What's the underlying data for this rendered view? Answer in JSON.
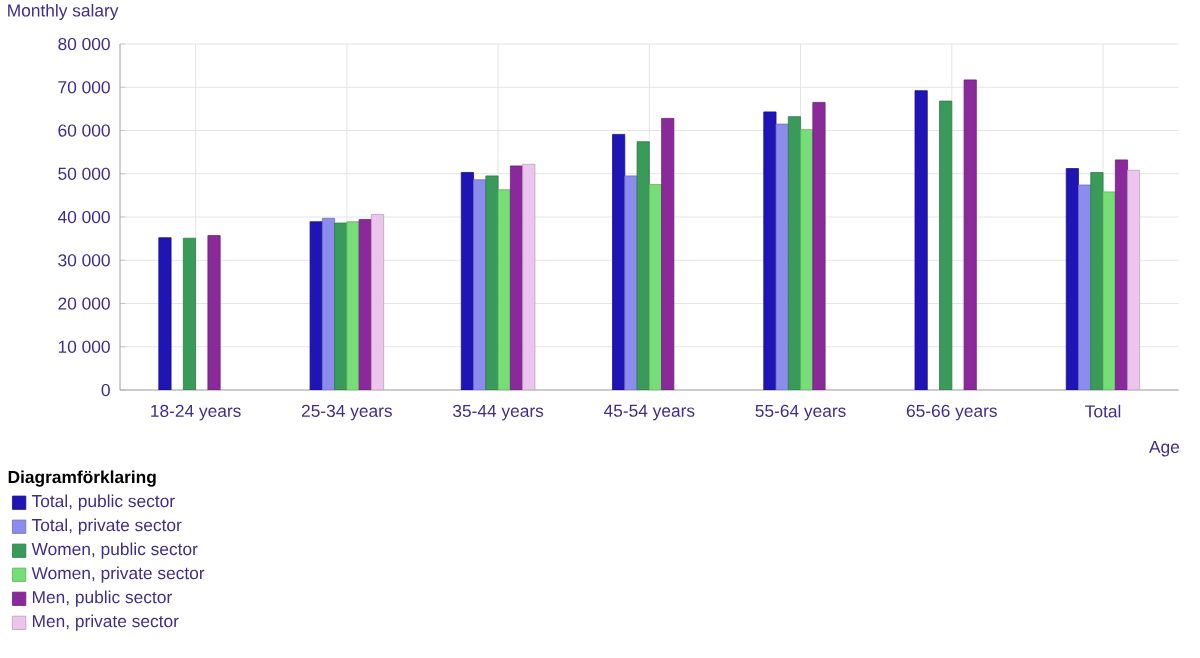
{
  "chart_data": {
    "type": "bar",
    "ylabel": "Monthly salary",
    "xlabel": "Age",
    "legend_title": "Diagramförklaring",
    "categories": [
      "18-24 years",
      "25-34 years",
      "35-44 years",
      "45-54 years",
      "55-64 years",
      "65-66 years",
      "Total"
    ],
    "series": [
      {
        "name": "Total, public sector",
        "color": "#1f14b4",
        "values": [
          35200,
          38900,
          50300,
          59100,
          64300,
          69200,
          51200
        ]
      },
      {
        "name": "Total, private sector",
        "color": "#8c8ced",
        "values": [
          null,
          39700,
          48600,
          49500,
          61500,
          null,
          47400
        ]
      },
      {
        "name": "Women, public sector",
        "color": "#3a9a5a",
        "values": [
          35100,
          38600,
          49500,
          57400,
          63200,
          66800,
          50300
        ]
      },
      {
        "name": "Women, private sector",
        "color": "#77dd77",
        "values": [
          null,
          38900,
          46300,
          47500,
          60200,
          null,
          45800
        ]
      },
      {
        "name": "Men, public sector",
        "color": "#8a2a9a",
        "values": [
          35700,
          39400,
          51800,
          62800,
          66500,
          71700,
          53200
        ]
      },
      {
        "name": "Men, private sector",
        "color": "#ecc5ec",
        "values": [
          null,
          40600,
          52200,
          null,
          null,
          null,
          50800
        ]
      }
    ],
    "ylim": [
      0,
      80000
    ],
    "yticks": [
      0,
      {
        "value": 10000,
        "label": "10 000"
      },
      {
        "value": 20000,
        "label": "20 000"
      },
      {
        "value": 30000,
        "label": "30 000"
      },
      {
        "value": 40000,
        "label": "40 000"
      },
      {
        "value": 50000,
        "label": "50 000"
      },
      {
        "value": 60000,
        "label": "60 000"
      },
      {
        "value": 70000,
        "label": "70 000"
      },
      {
        "value": 80000,
        "label": "80 000"
      }
    ],
    "grid": true,
    "legend": "bottom"
  }
}
